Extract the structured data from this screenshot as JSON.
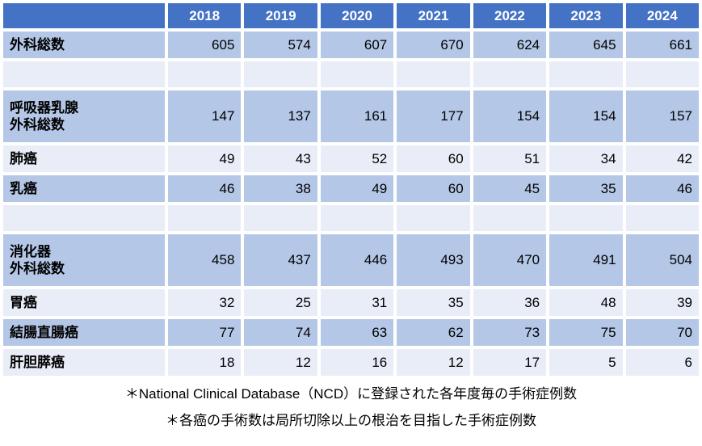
{
  "table": {
    "columns": [
      "2018",
      "2019",
      "2020",
      "2021",
      "2022",
      "2023",
      "2024"
    ],
    "rows": [
      {
        "label": "外科総数",
        "values": [
          "605",
          "574",
          "607",
          "670",
          "624",
          "645",
          "661"
        ],
        "band": "dark",
        "tall": false,
        "spacer": false
      },
      {
        "label": "",
        "values": [
          "",
          "",
          "",
          "",
          "",
          "",
          ""
        ],
        "band": "light",
        "tall": false,
        "spacer": true
      },
      {
        "label": "呼吸器乳腺\n外科総数",
        "values": [
          "147",
          "137",
          "161",
          "177",
          "154",
          "154",
          "157"
        ],
        "band": "dark",
        "tall": true,
        "spacer": false
      },
      {
        "label": "肺癌",
        "values": [
          "49",
          "43",
          "52",
          "60",
          "51",
          "34",
          "42"
        ],
        "band": "light",
        "tall": false,
        "spacer": false
      },
      {
        "label": "乳癌",
        "values": [
          "46",
          "38",
          "49",
          "60",
          "45",
          "35",
          "46"
        ],
        "band": "dark",
        "tall": false,
        "spacer": false
      },
      {
        "label": "",
        "values": [
          "",
          "",
          "",
          "",
          "",
          "",
          ""
        ],
        "band": "light",
        "tall": false,
        "spacer": true
      },
      {
        "label": "消化器\n外科総数",
        "values": [
          "458",
          "437",
          "446",
          "493",
          "470",
          "491",
          "504"
        ],
        "band": "dark",
        "tall": true,
        "spacer": false
      },
      {
        "label": "胃癌",
        "values": [
          "32",
          "25",
          "31",
          "35",
          "36",
          "48",
          "39"
        ],
        "band": "light",
        "tall": false,
        "spacer": false
      },
      {
        "label": "結腸直腸癌",
        "values": [
          "77",
          "74",
          "63",
          "62",
          "73",
          "75",
          "70"
        ],
        "band": "dark",
        "tall": false,
        "spacer": false
      },
      {
        "label": "肝胆膵癌",
        "values": [
          "18",
          "12",
          "16",
          "12",
          "17",
          "5",
          "6"
        ],
        "band": "light",
        "tall": false,
        "spacer": false
      }
    ]
  },
  "notes": [
    "＊National Clinical Database（NCD）に登録された各年度毎の手術症例数",
    "＊各癌の手術数は局所切除以上の根治を目指した手術症例数"
  ],
  "colors": {
    "header_bg": "#4472C4",
    "header_text": "#FFFFFF",
    "band_dark": "#B4C7E7",
    "band_light": "#E9EDF7",
    "background": "#FFFFFF"
  },
  "chart_data": {
    "type": "table",
    "title": "",
    "categories": [
      "2018",
      "2019",
      "2020",
      "2021",
      "2022",
      "2023",
      "2024"
    ],
    "series": [
      {
        "name": "外科総数",
        "values": [
          605,
          574,
          607,
          670,
          624,
          645,
          661
        ]
      },
      {
        "name": "呼吸器乳腺外科総数",
        "values": [
          147,
          137,
          161,
          177,
          154,
          154,
          157
        ]
      },
      {
        "name": "肺癌",
        "values": [
          49,
          43,
          52,
          60,
          51,
          34,
          42
        ]
      },
      {
        "name": "乳癌",
        "values": [
          46,
          38,
          49,
          60,
          45,
          35,
          46
        ]
      },
      {
        "name": "消化器外科総数",
        "values": [
          458,
          437,
          446,
          493,
          470,
          491,
          504
        ]
      },
      {
        "name": "胃癌",
        "values": [
          32,
          25,
          31,
          35,
          36,
          48,
          39
        ]
      },
      {
        "name": "結腸直腸癌",
        "values": [
          77,
          74,
          63,
          62,
          73,
          75,
          70
        ]
      },
      {
        "name": "肝胆膵癌",
        "values": [
          18,
          12,
          16,
          12,
          17,
          5,
          6
        ]
      }
    ],
    "annotations": [
      "＊National Clinical Database（NCD）に登録された各年度毎の手術症例数",
      "＊各癌の手術数は局所切除以上の根治を目指した手術症例数"
    ],
    "legend_position": "none",
    "grid": false
  }
}
